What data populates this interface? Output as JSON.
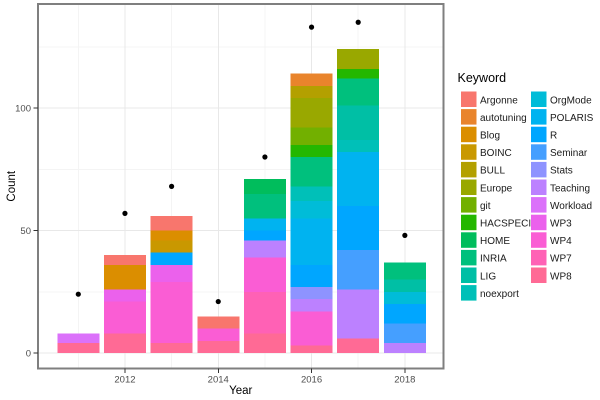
{
  "chart_data": {
    "type": "bar",
    "stacked": true,
    "title": "",
    "xlabel": "Year",
    "ylabel": "Count",
    "legend_title": "Keyword",
    "x_major": [
      2012,
      2014,
      2016,
      2018
    ],
    "x_ticks": [
      "2012",
      "2014",
      "2016",
      "2018"
    ],
    "x_minor": [
      2011,
      2013,
      2015,
      2017
    ],
    "y_major": [
      0,
      50,
      100
    ],
    "y_ticks": [
      "0",
      "50",
      "100"
    ],
    "y_minor": [
      25,
      75,
      125
    ],
    "ylim": [
      -6,
      142
    ],
    "grid": true,
    "legend_position": "right",
    "legend_columns": [
      12,
      11
    ],
    "point_color": "#000000",
    "keywords": [
      {
        "name": "Argonne",
        "color": "#F8766D"
      },
      {
        "name": "autotuning",
        "color": "#E9842C"
      },
      {
        "name": "Blog",
        "color": "#DB8E00"
      },
      {
        "name": "BOINC",
        "color": "#C99800"
      },
      {
        "name": "BULL",
        "color": "#B3A000"
      },
      {
        "name": "Europe",
        "color": "#99A800"
      },
      {
        "name": "git",
        "color": "#72B000"
      },
      {
        "name": "HACSPECIS",
        "color": "#24B700"
      },
      {
        "name": "HOME",
        "color": "#00BD5C"
      },
      {
        "name": "INRIA",
        "color": "#00C07D"
      },
      {
        "name": "LIG",
        "color": "#00BFA5"
      },
      {
        "name": "noexport",
        "color": "#00C0B8"
      },
      {
        "name": "OrgMode",
        "color": "#00BCD8"
      },
      {
        "name": "POLARIS",
        "color": "#00B3F0"
      },
      {
        "name": "R",
        "color": "#00A6FF"
      },
      {
        "name": "Seminar",
        "color": "#459FFF"
      },
      {
        "name": "Stats",
        "color": "#8E93FF"
      },
      {
        "name": "Teaching",
        "color": "#BC81FF"
      },
      {
        "name": "Workload",
        "color": "#DB71FA"
      },
      {
        "name": "WP3",
        "color": "#EB61EC"
      },
      {
        "name": "WP4",
        "color": "#FA5DD4"
      },
      {
        "name": "WP7",
        "color": "#FF61B5"
      },
      {
        "name": "WP8",
        "color": "#FF6A95"
      }
    ],
    "categories": [
      2011,
      2012,
      2013,
      2014,
      2015,
      2016,
      2017,
      2018
    ],
    "bars": [
      {
        "year": 2011,
        "total": 8,
        "segments": [
          [
            "Workload",
            4
          ],
          [
            "WP8",
            4
          ]
        ]
      },
      {
        "year": 2012,
        "total": 40,
        "segments": [
          [
            "Argonne",
            4
          ],
          [
            "Blog",
            10
          ],
          [
            "WP3",
            5
          ],
          [
            "WP4",
            13
          ],
          [
            "WP8",
            8
          ]
        ]
      },
      {
        "year": 2013,
        "total": 56,
        "segments": [
          [
            "Argonne",
            6
          ],
          [
            "Blog",
            4
          ],
          [
            "BOINC",
            5
          ],
          [
            "R",
            5
          ],
          [
            "WP3",
            7
          ],
          [
            "WP4",
            25
          ],
          [
            "WP8",
            4
          ]
        ]
      },
      {
        "year": 2014,
        "total": 15,
        "segments": [
          [
            "Argonne",
            5
          ],
          [
            "WP4",
            5
          ],
          [
            "WP8",
            5
          ]
        ]
      },
      {
        "year": 2015,
        "total": 71,
        "segments": [
          [
            "HOME",
            6
          ],
          [
            "INRIA",
            10
          ],
          [
            "POLARIS",
            5
          ],
          [
            "R",
            4
          ],
          [
            "Teaching",
            7
          ],
          [
            "WP4",
            14
          ],
          [
            "WP7",
            17
          ],
          [
            "WP8",
            8
          ]
        ]
      },
      {
        "year": 2016,
        "total": 114,
        "segments": [
          [
            "autotuning",
            5
          ],
          [
            "BULL",
            5
          ],
          [
            "Europe",
            12
          ],
          [
            "git",
            7
          ],
          [
            "HACSPECIS",
            5
          ],
          [
            "INRIA",
            12
          ],
          [
            "noexport",
            6
          ],
          [
            "OrgMode",
            7
          ],
          [
            "POLARIS",
            19
          ],
          [
            "R",
            9
          ],
          [
            "Stats",
            5
          ],
          [
            "Teaching",
            5
          ],
          [
            "WP4",
            14
          ],
          [
            "WP8",
            3
          ]
        ]
      },
      {
        "year": 2017,
        "total": 124,
        "segments": [
          [
            "Europe",
            8
          ],
          [
            "HACSPECIS",
            4
          ],
          [
            "INRIA",
            11
          ],
          [
            "LIG",
            14
          ],
          [
            "noexport",
            5
          ],
          [
            "POLARIS",
            22
          ],
          [
            "R",
            18
          ],
          [
            "Seminar",
            16
          ],
          [
            "Teaching",
            20
          ],
          [
            "WP8",
            6
          ]
        ]
      },
      {
        "year": 2018,
        "total": 37,
        "segments": [
          [
            "INRIA",
            7
          ],
          [
            "LIG",
            5
          ],
          [
            "OrgMode",
            5
          ],
          [
            "R",
            8
          ],
          [
            "Seminar",
            8
          ],
          [
            "Teaching",
            4
          ]
        ]
      }
    ],
    "points": {
      "name": "yearly-count-dots",
      "values": [
        [
          2011,
          24
        ],
        [
          2012,
          57
        ],
        [
          2013,
          68
        ],
        [
          2014,
          21
        ],
        [
          2015,
          80
        ],
        [
          2016,
          133
        ],
        [
          2017,
          135
        ],
        [
          2018,
          48
        ]
      ]
    }
  }
}
